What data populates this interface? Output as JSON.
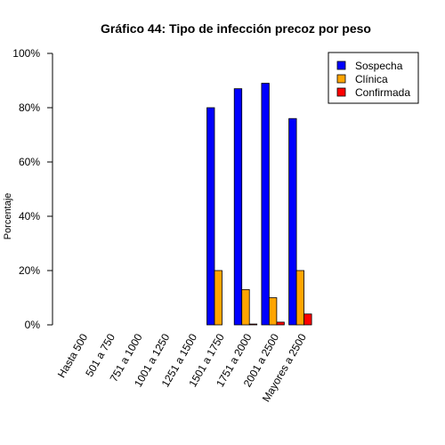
{
  "chart_data": {
    "type": "bar",
    "title": "Gráfico 44: Tipo de infección precoz por peso",
    "xlabel": "",
    "ylabel": "Porcentaje",
    "ylim": [
      0,
      100
    ],
    "y_ticks": [
      "0%",
      "20%",
      "40%",
      "60%",
      "80%",
      "100%"
    ],
    "y_tick_values": [
      0,
      20,
      40,
      60,
      80,
      100
    ],
    "grid": false,
    "legend_position": "top-right",
    "categories": [
      "Hasta 500",
      "501 a 750",
      "751 a 1000",
      "1001 a 1250",
      "1251 a 1500",
      "1501 a 1750",
      "1751 a 2000",
      "2001 a 2500",
      "Mayores a 2500"
    ],
    "series": [
      {
        "name": "Sospecha",
        "color": "#0000FF",
        "values": [
          0,
          0,
          0,
          0,
          0,
          80,
          87,
          89,
          76
        ]
      },
      {
        "name": "Clínica",
        "color": "#FFA500",
        "values": [
          0,
          0,
          0,
          0,
          0,
          20,
          13,
          10,
          20
        ]
      },
      {
        "name": "Confirmada",
        "color": "#FF0000",
        "values": [
          0,
          0,
          0,
          0,
          0,
          0,
          0.3,
          1,
          4
        ]
      }
    ]
  }
}
